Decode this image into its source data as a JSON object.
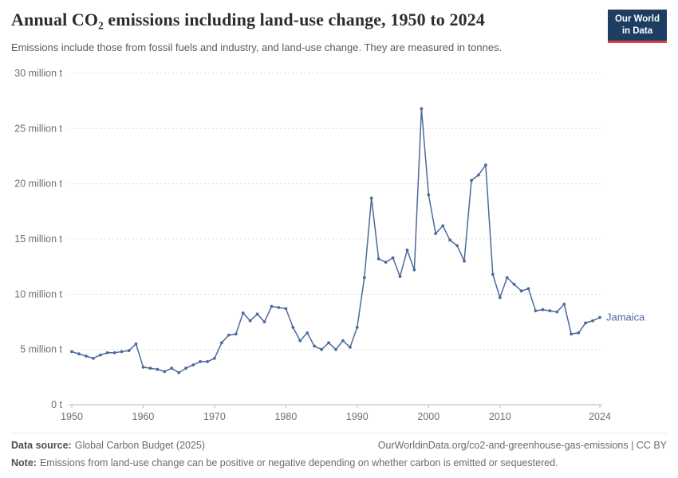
{
  "header": {
    "title": "Annual CO₂ emissions including land-use change, 1950 to 2024",
    "subtitle": "Emissions include those from fossil fuels and industry, and land-use change. They are measured in tonnes.",
    "logo": {
      "line1": "Our World",
      "line2": "in Data"
    }
  },
  "chart_data": {
    "type": "line",
    "title": "Annual CO₂ emissions including land-use change, 1950 to 2024",
    "values_unit": "million tonnes of CO₂",
    "xlim": [
      1950,
      2024
    ],
    "ylim": [
      0,
      30
    ],
    "grid": "dashed horizontal gridlines",
    "legend_position": "right end of line",
    "series": [
      {
        "name": "Jamaica",
        "color": "#4c6a9c",
        "x": [
          1950,
          1951,
          1952,
          1953,
          1954,
          1955,
          1956,
          1957,
          1958,
          1959,
          1960,
          1961,
          1962,
          1963,
          1964,
          1965,
          1966,
          1967,
          1968,
          1969,
          1970,
          1971,
          1972,
          1973,
          1974,
          1975,
          1976,
          1977,
          1978,
          1979,
          1980,
          1981,
          1982,
          1983,
          1984,
          1985,
          1986,
          1987,
          1988,
          1989,
          1990,
          1991,
          1992,
          1993,
          1994,
          1995,
          1996,
          1997,
          1998,
          1999,
          2000,
          2001,
          2002,
          2003,
          2004,
          2005,
          2006,
          2007,
          2008,
          2009,
          2010,
          2011,
          2012,
          2013,
          2014,
          2015,
          2016,
          2017,
          2018,
          2019,
          2020,
          2021,
          2022,
          2023,
          2024
        ],
        "values": [
          4.8,
          4.6,
          4.4,
          4.2,
          4.5,
          4.7,
          4.7,
          4.8,
          4.9,
          5.5,
          3.4,
          3.3,
          3.2,
          3.0,
          3.3,
          2.9,
          3.3,
          3.6,
          3.9,
          3.9,
          4.2,
          5.6,
          6.3,
          6.4,
          8.3,
          7.6,
          8.2,
          7.5,
          8.9,
          8.8,
          8.7,
          7.0,
          5.8,
          6.5,
          5.3,
          5.0,
          5.6,
          5.0,
          5.8,
          5.2,
          7.0,
          11.5,
          18.7,
          13.2,
          12.9,
          13.3,
          11.6,
          14.0,
          12.2,
          26.8,
          19.0,
          15.5,
          16.2,
          14.9,
          14.4,
          13.0,
          20.3,
          20.8,
          21.7,
          11.8,
          9.7,
          11.5,
          10.9,
          10.3,
          10.5,
          8.5,
          8.6,
          8.5,
          8.4,
          9.1,
          6.4,
          6.5,
          7.4,
          7.6,
          7.9
        ]
      }
    ],
    "y_ticks": [
      {
        "value": 0,
        "label": "0 t"
      },
      {
        "value": 5,
        "label": "5 million t"
      },
      {
        "value": 10,
        "label": "10 million t"
      },
      {
        "value": 15,
        "label": "15 million t"
      },
      {
        "value": 20,
        "label": "20 million t"
      },
      {
        "value": 25,
        "label": "25 million t"
      },
      {
        "value": 30,
        "label": "30 million t"
      }
    ],
    "x_ticks": [
      {
        "year": 1950,
        "label": "1950"
      },
      {
        "year": 1960,
        "label": "1960"
      },
      {
        "year": 1970,
        "label": "1970"
      },
      {
        "year": 1980,
        "label": "1980"
      },
      {
        "year": 1990,
        "label": "1990"
      },
      {
        "year": 2000,
        "label": "2000"
      },
      {
        "year": 2010,
        "label": "2010"
      },
      {
        "year": 2024,
        "label": "2024"
      }
    ]
  },
  "footer": {
    "data_source_label": "Data source:",
    "data_source_value": "Global Carbon Budget (2025)",
    "url": "OurWorldinData.org/co2-and-greenhouse-gas-emissions | CC BY",
    "note_label": "Note:",
    "note_value": "Emissions from land-use change can be positive or negative depending on whether carbon is emitted or sequestered."
  },
  "colors": {
    "series_line": "#4c6a9c",
    "logo_background": "#1d3d63",
    "logo_accent_red": "#e0403f",
    "gridline": "#dcdcdc",
    "axis_zero_line": "#b8b8b8"
  }
}
